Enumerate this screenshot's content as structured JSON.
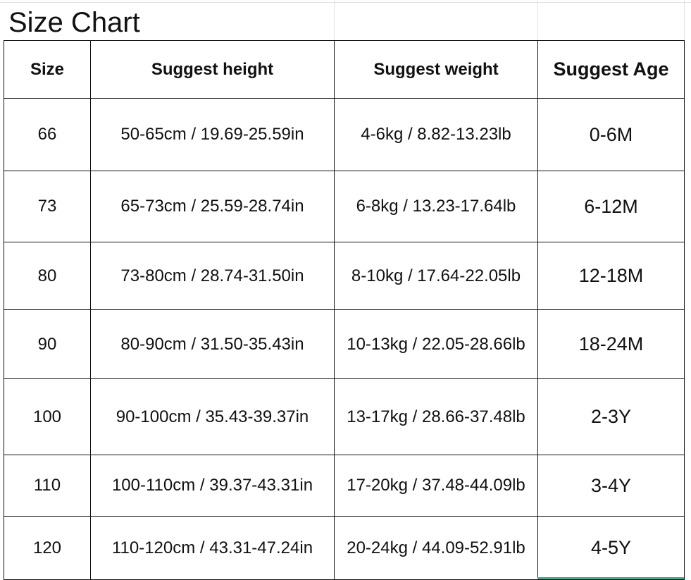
{
  "title": "Size Chart",
  "table": {
    "headers": [
      "Size",
      "Suggest height",
      "Suggest weight",
      "Suggest Age"
    ],
    "rows": [
      [
        "66",
        "50-65cm / 19.69-25.59in",
        "4-6kg / 8.82-13.23lb",
        "0-6M"
      ],
      [
        "73",
        "65-73cm / 25.59-28.74in",
        "6-8kg / 13.23-17.64lb",
        "6-12M"
      ],
      [
        "80",
        "73-80cm / 28.74-31.50in",
        "8-10kg / 17.64-22.05lb",
        "12-18M"
      ],
      [
        "90",
        "80-90cm / 31.50-35.43in",
        "10-13kg / 22.05-28.66lb",
        "18-24M"
      ],
      [
        "100",
        "90-100cm / 35.43-39.37in",
        "13-17kg / 28.66-37.48lb",
        "2-3Y"
      ],
      [
        "110",
        "100-110cm / 39.37-43.31in",
        "17-20kg / 37.48-44.09lb",
        "3-4Y"
      ],
      [
        "120",
        "110-120cm / 43.31-47.24in",
        "20-24kg / 44.09-52.91lb",
        "4-5Y"
      ]
    ]
  }
}
